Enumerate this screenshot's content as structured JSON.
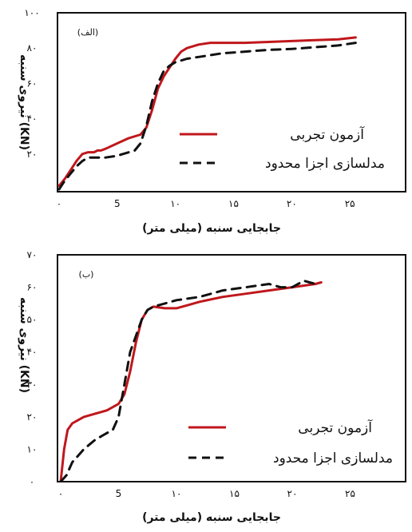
{
  "chart_data": [
    {
      "type": "line",
      "panel_label": "(الف)",
      "ylabel": "نیروی سنبه  (KN)",
      "xlabel": "جابجایی سنبه (میلی متر)",
      "xlim": [
        0,
        30
      ],
      "ylim": [
        0,
        100
      ],
      "x_ticks": [
        {
          "value": 0,
          "label": "۰"
        },
        {
          "value": 5,
          "label": "5"
        },
        {
          "value": 10,
          "label": "۱۰"
        },
        {
          "value": 15,
          "label": "۱۵"
        },
        {
          "value": 20,
          "label": "۲۰"
        },
        {
          "value": 25,
          "label": "۲۵"
        }
      ],
      "y_ticks": [
        {
          "value": 20,
          "label": "۲۰"
        },
        {
          "value": 40,
          "label": "۴۰"
        },
        {
          "value": 60,
          "label": "۶۰"
        },
        {
          "value": 80,
          "label": "۸۰"
        },
        {
          "value": 100,
          "label": "۱۰۰"
        }
      ],
      "legend_position": "center-right",
      "series": [
        {
          "name": "آزمون تجربی",
          "color": "#c0171c",
          "style": "solid",
          "x": [
            0,
            0.5,
            1,
            1.5,
            2,
            2.5,
            3,
            3.3,
            3.6,
            4,
            5,
            6,
            7,
            7.5,
            8,
            8.5,
            9,
            9.5,
            10,
            10.5,
            11,
            12,
            13,
            14,
            16,
            18,
            20,
            22,
            24,
            25.5
          ],
          "y": [
            2,
            6,
            11,
            16,
            20,
            21,
            21,
            22,
            22,
            23,
            26,
            29,
            31,
            35,
            45,
            57,
            64,
            69,
            74,
            78,
            80,
            82,
            83,
            83,
            83,
            83.5,
            84,
            84.5,
            85,
            86
          ]
        },
        {
          "name": "مدلسازی اجزا محدود",
          "color": "#111111",
          "style": "dashed",
          "x": [
            0,
            0.5,
            1,
            1.5,
            2,
            2.5,
            3,
            4,
            5,
            6,
            6.5,
            7,
            7.5,
            8,
            8.5,
            9,
            9.5,
            10,
            11,
            12,
            14,
            16,
            18,
            20,
            22,
            24,
            25.5
          ],
          "y": [
            0,
            5,
            9,
            13,
            16,
            18,
            18,
            18,
            19,
            21,
            22,
            26,
            36,
            50,
            60,
            67,
            70,
            72,
            74,
            75,
            77,
            78,
            79,
            79.5,
            80.5,
            81.5,
            83
          ]
        }
      ]
    },
    {
      "type": "line",
      "panel_label": "(ب)",
      "ylabel": "نیروی سنبه  (KN)",
      "xlabel": "جابجایی سنبه (میلی متر)",
      "xlim": [
        0,
        30
      ],
      "ylim": [
        0,
        70
      ],
      "x_ticks": [
        {
          "value": 0,
          "label": "۰"
        },
        {
          "value": 5,
          "label": "5"
        },
        {
          "value": 10,
          "label": "۱۰"
        },
        {
          "value": 15,
          "label": "۱۵"
        },
        {
          "value": 20,
          "label": "۲۰"
        },
        {
          "value": 25,
          "label": "۲۵"
        }
      ],
      "y_ticks": [
        {
          "value": 0,
          "label": "۰"
        },
        {
          "value": 10,
          "label": "۱۰"
        },
        {
          "value": 20,
          "label": "۲۰"
        },
        {
          "value": 30,
          "label": "۳۰"
        },
        {
          "value": 40,
          "label": "۴۰"
        },
        {
          "value": 50,
          "label": "۵۰"
        },
        {
          "value": 60,
          "label": "۶۰"
        },
        {
          "value": 70,
          "label": "۷۰"
        }
      ],
      "legend_position": "lower-right",
      "series": [
        {
          "name": "آزمون تجربی",
          "color": "#c0171c",
          "style": "solid",
          "x": [
            0,
            0.3,
            0.6,
            1,
            1.5,
            2,
            3,
            4,
            5,
            5.5,
            6,
            6.5,
            7,
            7.5,
            8,
            9,
            10,
            11,
            12,
            14,
            16,
            18,
            20,
            22,
            22.5
          ],
          "y": [
            0,
            10,
            16,
            18,
            19,
            20,
            21,
            22,
            24,
            27,
            34,
            43,
            50,
            53,
            54,
            53.5,
            53.5,
            54.5,
            55.5,
            57,
            58,
            59,
            60,
            61,
            61.5
          ]
        },
        {
          "name": "مدلسازی اجزا محدود",
          "color": "#111111",
          "style": "dashed",
          "x": [
            0,
            0.5,
            1,
            2,
            3,
            4,
            4.5,
            5,
            5.5,
            6,
            6.5,
            7,
            7.5,
            8,
            9,
            10,
            12,
            14,
            16,
            18,
            19,
            20,
            21,
            22
          ],
          "y": [
            0,
            2,
            6,
            10,
            13,
            15,
            16,
            20,
            30,
            40,
            45,
            50,
            53,
            54,
            55,
            56,
            57,
            59,
            60,
            61,
            60,
            60,
            62,
            61
          ]
        }
      ]
    }
  ]
}
